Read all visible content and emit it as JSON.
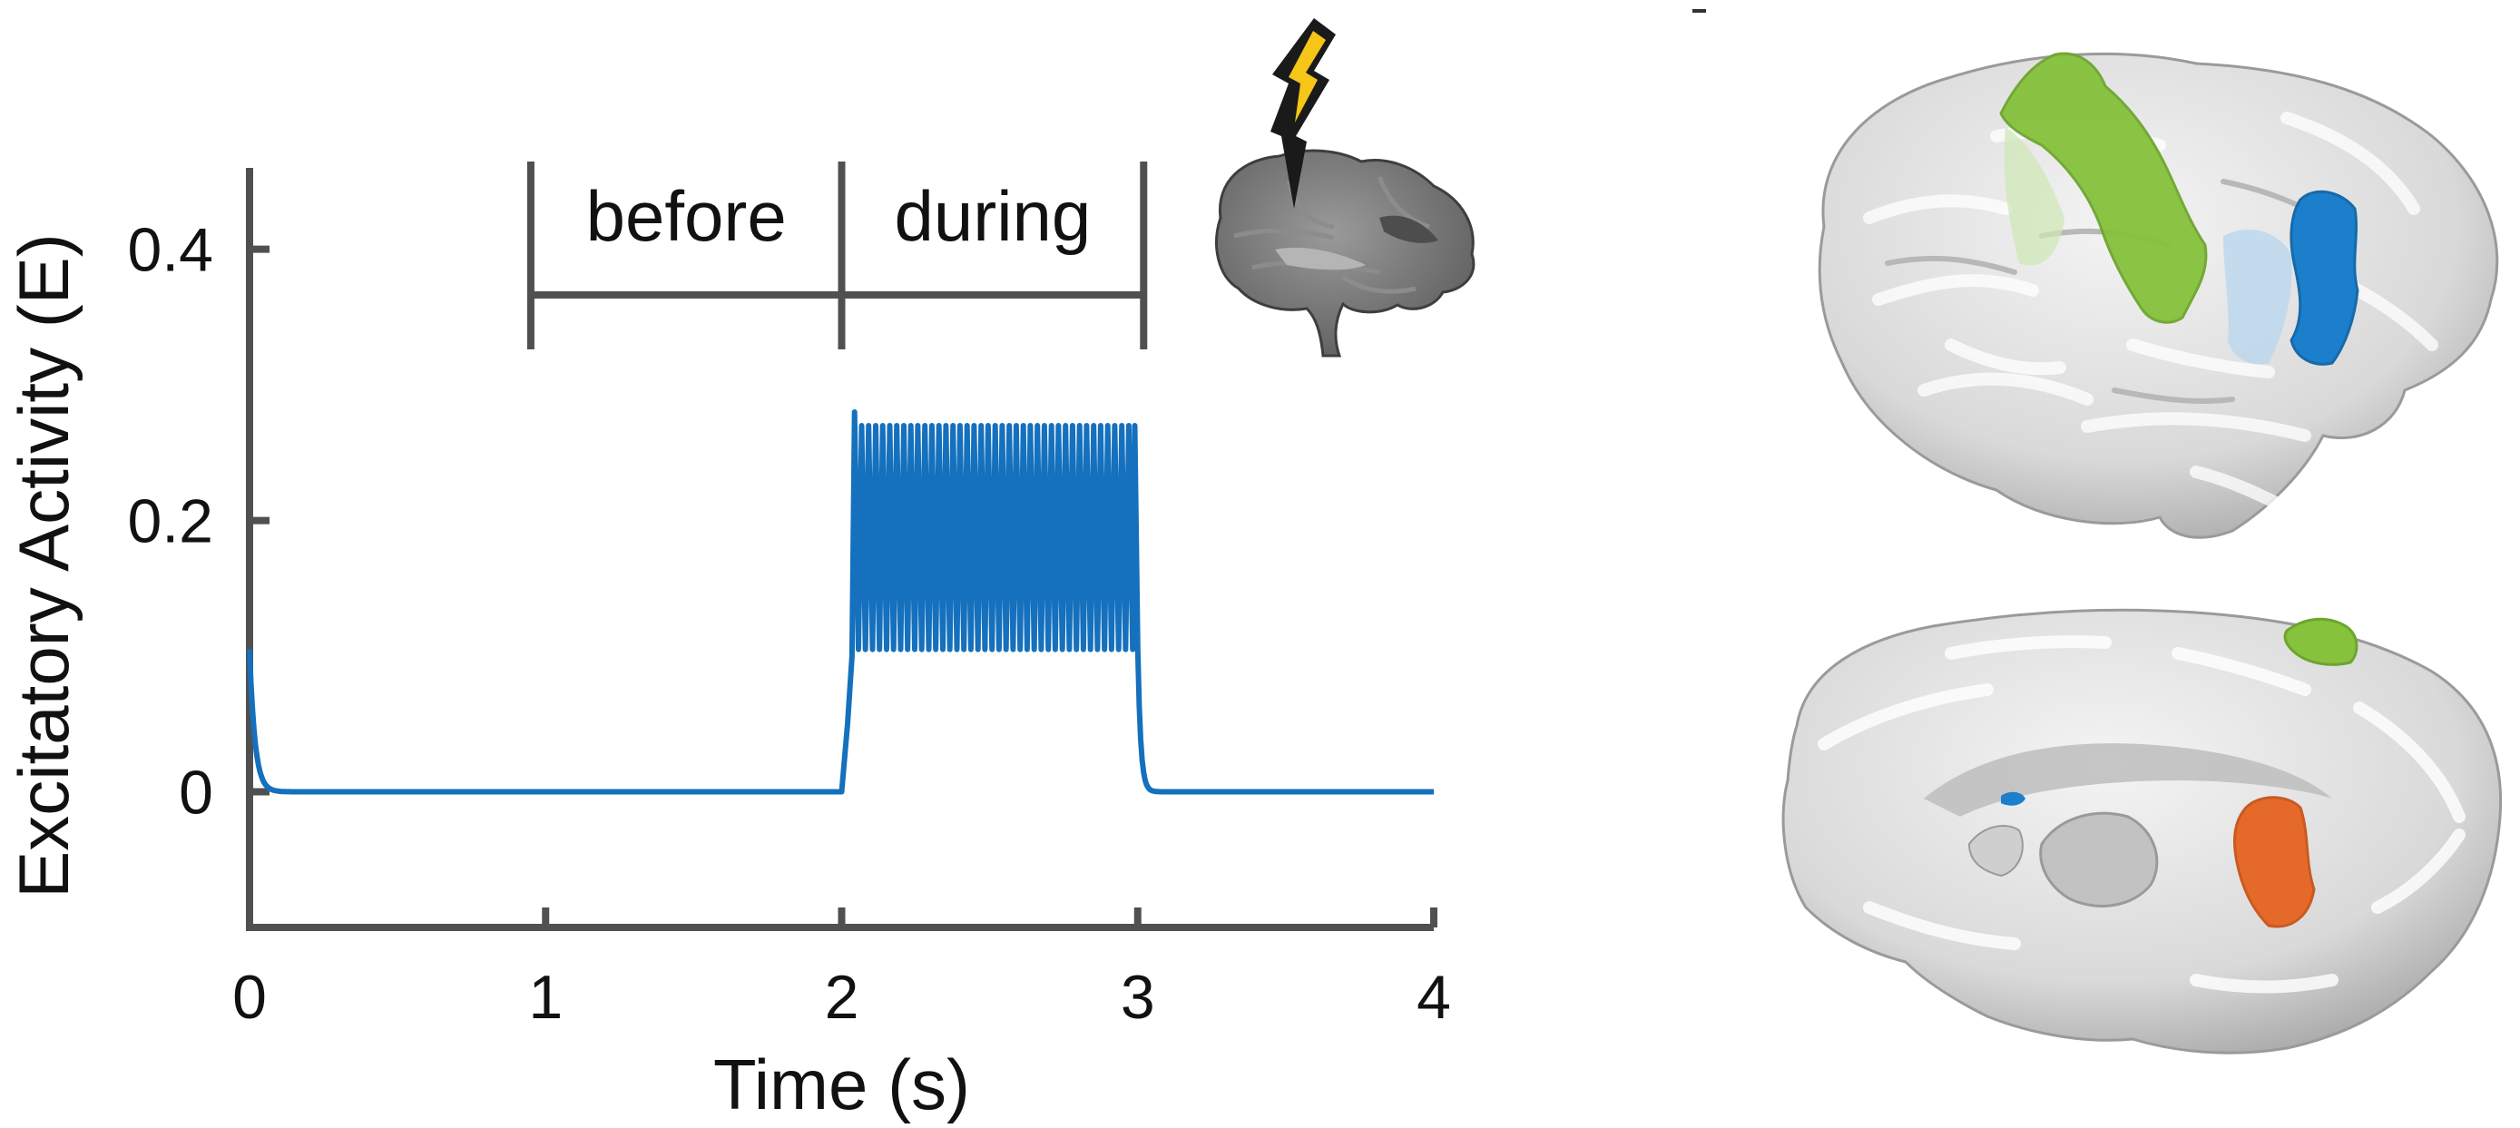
{
  "chart_data": {
    "type": "line",
    "title": "",
    "xlabel": "Time (s)",
    "ylabel": "Excitatory Activity (E)",
    "xlim": [
      0,
      4
    ],
    "ylim": [
      -0.1,
      0.46
    ],
    "x_ticks": [
      0,
      1,
      2,
      3,
      4
    ],
    "x_tick_labels": [
      "0",
      "1",
      "2",
      "3",
      "4"
    ],
    "y_ticks": [
      0,
      0.2,
      0.4
    ],
    "y_tick_labels": [
      "0",
      "0.2",
      "0.4"
    ],
    "grid": false,
    "series": [
      {
        "color": "#1570bd",
        "description_points": {
          "x": [
            0,
            0.03,
            0.08,
            0.15,
            1.99,
            2.0,
            2.04,
            2.05,
            2.98,
            3.0,
            3.03,
            3.05,
            4.0
          ],
          "y": [
            0.105,
            0.02,
            0.005,
            0.0,
            0.0,
            0.0,
            0.1,
            0.28,
            0.27,
            0.105,
            0.005,
            0.0,
            0.0
          ]
        },
        "oscillation": {
          "x_start": 2.04,
          "x_end": 2.99,
          "min": 0.105,
          "max": 0.27,
          "cycles": 40
        }
      }
    ],
    "annotations": {
      "periods": [
        {
          "label": "before",
          "x_start": 0.95,
          "x_end": 2.0
        },
        {
          "label": "during",
          "x_start": 2.0,
          "x_end": 3.02
        }
      ]
    }
  },
  "colors": {
    "axis": "#505050",
    "line": "#1570bd",
    "brain_base": "#d7d7d7",
    "region_green": "#86c23c",
    "region_blue": "#1b7fcb",
    "region_orange": "#e56a2a",
    "bolt_outer": "#1a1a1a",
    "bolt_inner": "#f5c518"
  },
  "icons": {
    "stimulation": "lightning-bolt-brain-icon",
    "brain_lateral": "brain-lateral-view",
    "brain_medial": "brain-medial-view"
  }
}
